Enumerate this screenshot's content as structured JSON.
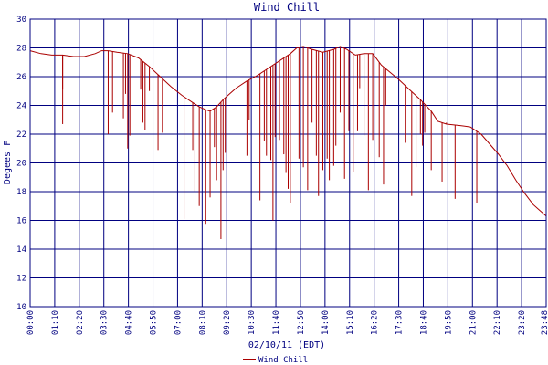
{
  "chart_data": {
    "type": "line",
    "title": "Wind Chill",
    "xlabel": "02/10/11 (EDT)",
    "ylabel": "Degees F",
    "ylim": [
      10,
      30
    ],
    "y_ticks": [
      "10",
      "12",
      "14",
      "16",
      "18",
      "20",
      "22",
      "24",
      "26",
      "28",
      "30"
    ],
    "x_ticks": [
      "00:00",
      "01:10",
      "02:20",
      "03:30",
      "04:40",
      "05:50",
      "07:00",
      "08:10",
      "09:20",
      "10:30",
      "11:40",
      "12:50",
      "14:00",
      "15:10",
      "16:20",
      "17:30",
      "18:40",
      "19:50",
      "21:00",
      "22:10",
      "23:20",
      "23:48"
    ],
    "grid": true,
    "legend": "bottom-center",
    "colors": {
      "series": "#aa0000",
      "grid": "#000080",
      "text": "#000080"
    },
    "series": [
      {
        "name": "Wind Chill",
        "x_hours": [
          0,
          0.5,
          1,
          1.5,
          2,
          2.5,
          3,
          3.3,
          3.6,
          4,
          4.5,
          5,
          5.5,
          6,
          6.5,
          7,
          7.5,
          7.8,
          8.1,
          8.3,
          8.6,
          8.9,
          9.2,
          9.5,
          10,
          10.5,
          11,
          11.5,
          12,
          12.3,
          12.6,
          13,
          13.5,
          14,
          14.3,
          14.6,
          15,
          15.4,
          15.8,
          16.2,
          16.6,
          17,
          17.5,
          18,
          18.5,
          18.8,
          19.2,
          19.8,
          20.3,
          20.8,
          21.2,
          21.6,
          22,
          22.4,
          22.8,
          23.2,
          23.5,
          23.8
        ],
        "values": [
          27.8,
          27.6,
          27.5,
          27.5,
          27.4,
          27.4,
          27.6,
          27.8,
          27.8,
          27.7,
          27.6,
          27.3,
          26.7,
          26.0,
          25.3,
          24.7,
          24.2,
          23.9,
          23.7,
          23.6,
          23.9,
          24.4,
          24.8,
          25.2,
          25.7,
          26.1,
          26.6,
          27.1,
          27.6,
          28.0,
          28.1,
          27.9,
          27.7,
          27.9,
          28.1,
          27.9,
          27.5,
          27.6,
          27.6,
          26.8,
          26.3,
          25.8,
          25.1,
          24.4,
          23.6,
          22.9,
          22.7,
          22.6,
          22.5,
          22.0,
          21.3,
          20.6,
          19.8,
          18.8,
          17.9,
          17.1,
          16.7,
          16.3
        ]
      }
    ],
    "dips": [
      [
        1.5,
        22.7
      ],
      [
        1.5,
        25.1
      ],
      [
        3.6,
        22.0
      ],
      [
        3.8,
        23.5
      ],
      [
        4.3,
        23.1
      ],
      [
        4.4,
        24.8
      ],
      [
        4.5,
        21.0
      ],
      [
        4.6,
        21.9
      ],
      [
        5.1,
        25.1
      ],
      [
        5.2,
        22.8
      ],
      [
        5.3,
        22.3
      ],
      [
        5.5,
        25.0
      ],
      [
        5.9,
        20.9
      ],
      [
        6.1,
        22.1
      ],
      [
        7.1,
        16.1
      ],
      [
        7.5,
        20.9
      ],
      [
        7.6,
        18.0
      ],
      [
        7.8,
        17.0
      ],
      [
        8.1,
        15.7
      ],
      [
        8.3,
        17.6
      ],
      [
        8.5,
        21.1
      ],
      [
        8.6,
        18.8
      ],
      [
        8.8,
        14.7
      ],
      [
        8.9,
        19.5
      ],
      [
        9.0,
        20.7
      ],
      [
        10.0,
        20.5
      ],
      [
        10.1,
        23.0
      ],
      [
        10.6,
        17.4
      ],
      [
        10.8,
        21.5
      ],
      [
        10.9,
        20.5
      ],
      [
        11.1,
        20.2
      ],
      [
        11.2,
        16.0
      ],
      [
        11.3,
        21.8
      ],
      [
        11.5,
        21.6
      ],
      [
        11.7,
        20.6
      ],
      [
        11.8,
        19.3
      ],
      [
        11.9,
        18.2
      ],
      [
        12.0,
        17.2
      ],
      [
        12.4,
        20.3
      ],
      [
        12.6,
        19.7
      ],
      [
        12.8,
        18.1
      ],
      [
        13.0,
        22.8
      ],
      [
        13.2,
        20.5
      ],
      [
        13.3,
        17.7
      ],
      [
        13.5,
        19.5
      ],
      [
        13.7,
        20.3
      ],
      [
        13.8,
        18.8
      ],
      [
        14.0,
        19.8
      ],
      [
        14.1,
        21.2
      ],
      [
        14.3,
        23.5
      ],
      [
        14.5,
        18.9
      ],
      [
        14.7,
        22.2
      ],
      [
        14.9,
        19.4
      ],
      [
        15.1,
        22.2
      ],
      [
        15.2,
        25.2
      ],
      [
        15.4,
        21.9
      ],
      [
        15.6,
        18.1
      ],
      [
        15.8,
        21.6
      ],
      [
        16.1,
        20.4
      ],
      [
        16.3,
        18.5
      ],
      [
        16.4,
        24.0
      ],
      [
        17.3,
        21.4
      ],
      [
        17.6,
        17.7
      ],
      [
        17.8,
        19.7
      ],
      [
        18.0,
        22.0
      ],
      [
        18.1,
        21.2
      ],
      [
        18.2,
        22.1
      ],
      [
        18.5,
        19.5
      ],
      [
        19.0,
        18.7
      ],
      [
        19.2,
        22.8
      ],
      [
        19.6,
        17.5
      ],
      [
        20.6,
        17.2
      ]
    ]
  },
  "legend": {
    "label": "Wind Chill"
  }
}
